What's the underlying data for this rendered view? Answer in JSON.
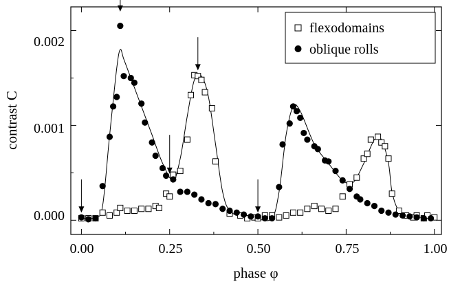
{
  "chart_data": {
    "type": "scatter",
    "xlabel": "phase φ",
    "ylabel": "contrast C",
    "xlim": [
      -0.03,
      1.02
    ],
    "ylim": [
      -0.00015,
      0.00225
    ],
    "x_ticks": [
      "0.00",
      "0.25",
      "0.50",
      "0.75",
      "1.00"
    ],
    "y_ticks": [
      "0.000",
      "0.001",
      "0.002"
    ],
    "grid": false,
    "legend_position": "top-right",
    "series": [
      {
        "name": "flexodomains",
        "marker": "open-square",
        "points": [
          [
            0.0,
            2e-05
          ],
          [
            0.02,
            2e-05
          ],
          [
            0.04,
            2e-05
          ],
          [
            0.06,
            8e-05
          ],
          [
            0.08,
            5e-05
          ],
          [
            0.1,
            8e-05
          ],
          [
            0.11,
            0.00013
          ],
          [
            0.13,
            0.0001
          ],
          [
            0.15,
            0.0001
          ],
          [
            0.17,
            0.00012
          ],
          [
            0.19,
            0.00012
          ],
          [
            0.21,
            0.00015
          ],
          [
            0.22,
            0.00013
          ],
          [
            0.24,
            0.00028
          ],
          [
            0.25,
            0.00025
          ],
          [
            0.26,
            0.00048
          ],
          [
            0.28,
            0.00052
          ],
          [
            0.3,
            0.00085
          ],
          [
            0.31,
            0.00132
          ],
          [
            0.32,
            0.00153
          ],
          [
            0.33,
            0.00152
          ],
          [
            0.34,
            0.00148
          ],
          [
            0.35,
            0.00135
          ],
          [
            0.37,
            0.00118
          ],
          [
            0.38,
            0.00062
          ],
          [
            0.42,
            7e-05
          ],
          [
            0.45,
            5e-05
          ],
          [
            0.47,
            2e-05
          ],
          [
            0.49,
            3e-05
          ],
          [
            0.5,
            2e-05
          ],
          [
            0.52,
            5e-05
          ],
          [
            0.54,
            5e-05
          ],
          [
            0.56,
            3e-05
          ],
          [
            0.58,
            5e-05
          ],
          [
            0.6,
            8e-05
          ],
          [
            0.62,
            8e-05
          ],
          [
            0.64,
            0.00012
          ],
          [
            0.66,
            0.00015
          ],
          [
            0.68,
            0.00012
          ],
          [
            0.7,
            0.0001
          ],
          [
            0.72,
            0.00012
          ],
          [
            0.74,
            0.00025
          ],
          [
            0.76,
            0.00038
          ],
          [
            0.78,
            0.00045
          ],
          [
            0.8,
            0.00065
          ],
          [
            0.81,
            0.0007
          ],
          [
            0.82,
            0.00085
          ],
          [
            0.84,
            0.00088
          ],
          [
            0.85,
            0.00082
          ],
          [
            0.86,
            0.00078
          ],
          [
            0.87,
            0.00065
          ],
          [
            0.88,
            0.00028
          ],
          [
            0.9,
            0.0001
          ],
          [
            0.92,
            5e-05
          ],
          [
            0.94,
            3e-05
          ],
          [
            0.95,
            5e-05
          ],
          [
            0.97,
            2e-05
          ],
          [
            0.98,
            5e-05
          ],
          [
            1.0,
            3e-05
          ]
        ]
      },
      {
        "name": "oblique rolls",
        "marker": "filled-circle",
        "points": [
          [
            0.0,
            3e-05
          ],
          [
            0.02,
            1e-05
          ],
          [
            0.04,
            2e-05
          ],
          [
            0.06,
            0.00036
          ],
          [
            0.08,
            0.00088
          ],
          [
            0.09,
            0.0012
          ],
          [
            0.1,
            0.0013
          ],
          [
            0.11,
            0.00205
          ],
          [
            0.12,
            0.00152
          ],
          [
            0.14,
            0.0015
          ],
          [
            0.15,
            0.00145
          ],
          [
            0.17,
            0.00123
          ],
          [
            0.18,
            0.00103
          ],
          [
            0.2,
            0.00082
          ],
          [
            0.21,
            0.00068
          ],
          [
            0.23,
            0.00055
          ],
          [
            0.24,
            0.00047
          ],
          [
            0.26,
            0.00043
          ],
          [
            0.28,
            0.0003
          ],
          [
            0.3,
            0.0003
          ],
          [
            0.32,
            0.00027
          ],
          [
            0.34,
            0.00022
          ],
          [
            0.36,
            0.00018
          ],
          [
            0.38,
            0.00017
          ],
          [
            0.4,
            0.00012
          ],
          [
            0.42,
            0.0001
          ],
          [
            0.44,
            8e-05
          ],
          [
            0.46,
            6e-05
          ],
          [
            0.48,
            4e-05
          ],
          [
            0.5,
            4e-05
          ],
          [
            0.52,
            2e-05
          ],
          [
            0.54,
            2e-05
          ],
          [
            0.56,
            0.00035
          ],
          [
            0.57,
            0.0008
          ],
          [
            0.59,
            0.00102
          ],
          [
            0.6,
            0.0012
          ],
          [
            0.61,
            0.00115
          ],
          [
            0.62,
            0.00108
          ],
          [
            0.63,
            0.00092
          ],
          [
            0.64,
            0.00085
          ],
          [
            0.66,
            0.00078
          ],
          [
            0.67,
            0.00075
          ],
          [
            0.69,
            0.00063
          ],
          [
            0.7,
            0.00062
          ],
          [
            0.72,
            0.00052
          ],
          [
            0.74,
            0.00042
          ],
          [
            0.76,
            0.00033
          ],
          [
            0.78,
            0.00025
          ],
          [
            0.79,
            0.00022
          ],
          [
            0.81,
            0.00018
          ],
          [
            0.83,
            0.00015
          ],
          [
            0.85,
            0.0001
          ],
          [
            0.87,
            8e-05
          ],
          [
            0.89,
            6e-05
          ],
          [
            0.91,
            5e-05
          ],
          [
            0.93,
            4e-05
          ],
          [
            0.95,
            3e-05
          ],
          [
            0.97,
            2e-05
          ],
          [
            0.99,
            2e-05
          ]
        ]
      }
    ],
    "fit_curve": [
      [
        0.0,
        2e-05
      ],
      [
        0.04,
        3e-05
      ],
      [
        0.06,
        0.00015
      ],
      [
        0.08,
        0.0009
      ],
      [
        0.1,
        0.0016
      ],
      [
        0.11,
        0.0018
      ],
      [
        0.12,
        0.0017
      ],
      [
        0.14,
        0.0015
      ],
      [
        0.17,
        0.0012
      ],
      [
        0.2,
        0.0009
      ],
      [
        0.23,
        0.0006
      ],
      [
        0.26,
        0.00042
      ],
      [
        0.28,
        0.00065
      ],
      [
        0.3,
        0.0011
      ],
      [
        0.32,
        0.00148
      ],
      [
        0.34,
        0.00152
      ],
      [
        0.36,
        0.0013
      ],
      [
        0.38,
        0.0008
      ],
      [
        0.4,
        0.0003
      ],
      [
        0.42,
        0.0001
      ],
      [
        0.46,
        3e-05
      ],
      [
        0.5,
        1e-05
      ],
      [
        0.54,
        2e-05
      ],
      [
        0.56,
        0.0003
      ],
      [
        0.58,
        0.0009
      ],
      [
        0.6,
        0.0012
      ],
      [
        0.62,
        0.00115
      ],
      [
        0.66,
        0.0008
      ],
      [
        0.7,
        0.0006
      ],
      [
        0.74,
        0.00042
      ],
      [
        0.77,
        0.0004
      ],
      [
        0.8,
        0.0006
      ],
      [
        0.83,
        0.00085
      ],
      [
        0.85,
        0.00085
      ],
      [
        0.87,
        0.0006
      ],
      [
        0.88,
        0.0003
      ],
      [
        0.9,
        0.0001
      ],
      [
        0.94,
        4e-05
      ],
      [
        1.0,
        2e-05
      ]
    ],
    "arrows": [
      {
        "x": 0.0,
        "y_tip": 8e-05,
        "y_tail": 0.00043
      },
      {
        "x": 0.11,
        "y_tip": 0.0022,
        "y_tail": 0.00245
      },
      {
        "x": 0.25,
        "y_tip": 0.00049,
        "y_tail": 0.0009
      },
      {
        "x": 0.33,
        "y_tip": 0.00158,
        "y_tail": 0.00193
      },
      {
        "x": 0.5,
        "y_tip": 8e-05,
        "y_tail": 0.00043
      }
    ]
  }
}
